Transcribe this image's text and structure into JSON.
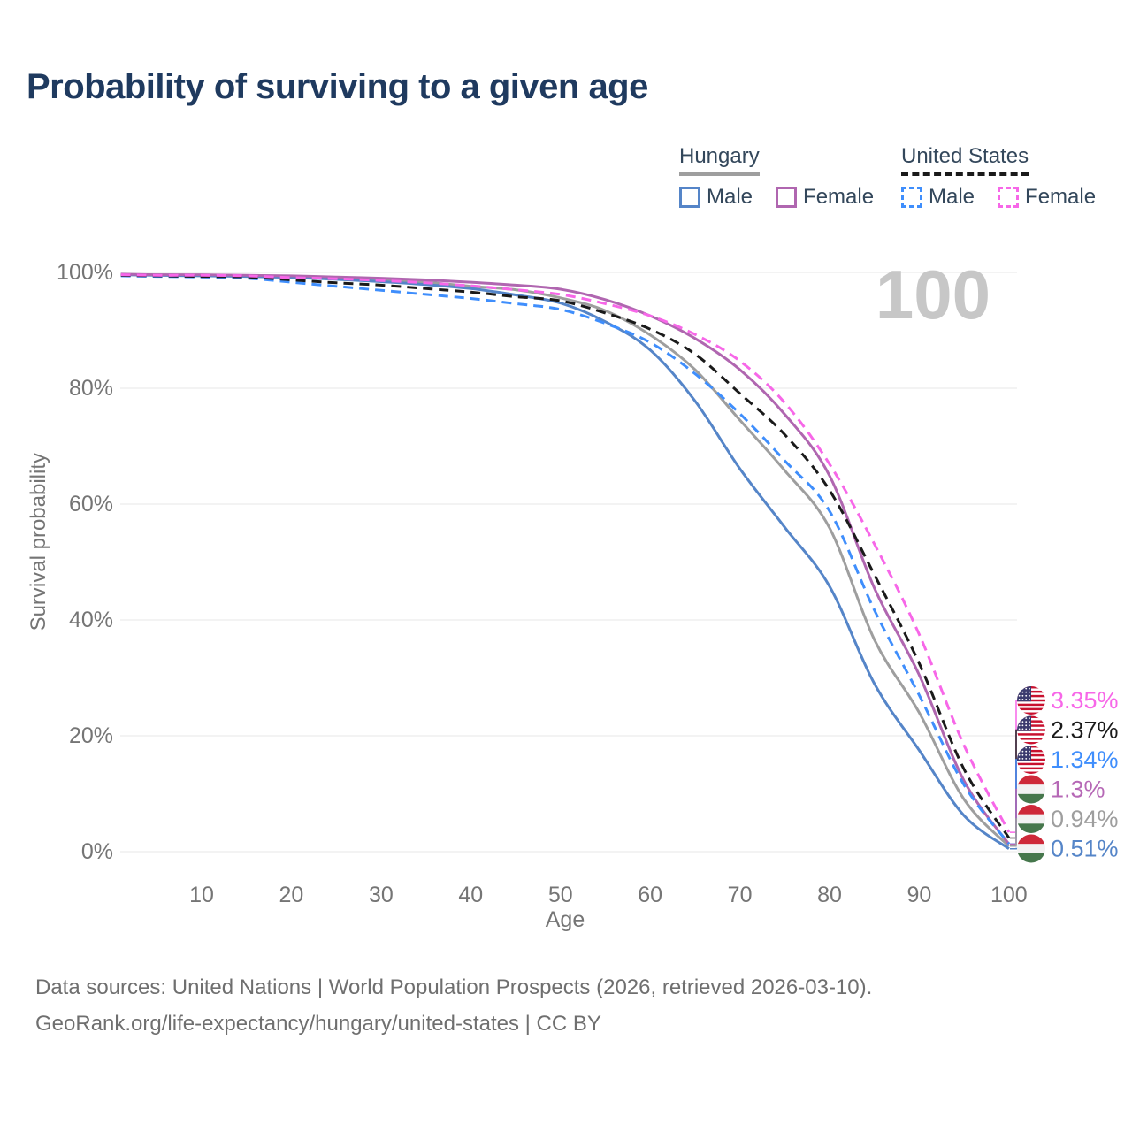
{
  "title": "Probability of surviving to a given age",
  "watermark": "100",
  "legend": {
    "groups": [
      {
        "label": "Hungary",
        "line_color": "#9e9e9e",
        "line_style": "solid",
        "items": [
          {
            "label": "Male",
            "color": "#5585c8",
            "style": "solid"
          },
          {
            "label": "Female",
            "color": "#b066b0",
            "style": "solid"
          }
        ]
      },
      {
        "label": "United States",
        "line_color": "#1a1a1a",
        "line_style": "dashed",
        "items": [
          {
            "label": "Male",
            "color": "#3f8efc",
            "style": "dashed"
          },
          {
            "label": "Female",
            "color": "#f767e8",
            "style": "dashed"
          }
        ]
      }
    ]
  },
  "chart_data": {
    "type": "line",
    "title": "Probability of surviving to a given age",
    "xlabel": "Age",
    "ylabel": "Survival probability",
    "xlim": [
      1,
      100
    ],
    "ylim": [
      0,
      100
    ],
    "grid": "horizontal-only",
    "legend_position": "top-right",
    "x_ticks": [
      10,
      20,
      30,
      40,
      50,
      60,
      70,
      80,
      90,
      100
    ],
    "y_ticks": [
      0,
      20,
      40,
      60,
      80,
      100
    ],
    "y_tick_suffix": "%",
    "x": [
      1,
      5,
      10,
      15,
      20,
      25,
      30,
      35,
      40,
      45,
      50,
      55,
      60,
      65,
      70,
      75,
      80,
      85,
      90,
      95,
      100
    ],
    "series": [
      {
        "name": "Hungary — Both sexes",
        "country": "Hungary",
        "sex": "both",
        "style": "solid",
        "color": "#9e9e9e",
        "values": [
          99.6,
          99.6,
          99.5,
          99.4,
          99.2,
          99.0,
          98.7,
          98.3,
          97.6,
          97.0,
          95.6,
          93.4,
          89.2,
          83.2,
          74.5,
          65.8,
          55.9,
          36.6,
          24.0,
          9.0,
          0.94
        ],
        "end_label": "0.94%"
      },
      {
        "name": "Hungary — Male",
        "country": "Hungary",
        "sex": "male",
        "style": "solid",
        "color": "#5585c8",
        "values": [
          99.6,
          99.5,
          99.4,
          99.3,
          99.1,
          98.8,
          98.4,
          97.9,
          97.2,
          96.1,
          94.7,
          91.5,
          86.6,
          77.8,
          66.1,
          56.0,
          45.8,
          29.0,
          17.5,
          6.2,
          0.51
        ],
        "end_label": "0.51%"
      },
      {
        "name": "Hungary — Female",
        "country": "Hungary",
        "sex": "female",
        "style": "solid",
        "color": "#b066b0",
        "values": [
          99.7,
          99.6,
          99.6,
          99.5,
          99.4,
          99.2,
          99.0,
          98.7,
          98.3,
          97.8,
          97.1,
          95.3,
          92.5,
          88.6,
          83.2,
          75.5,
          64.9,
          45.5,
          30.5,
          12.2,
          1.3
        ],
        "end_label": "1.3%"
      },
      {
        "name": "United States — Male",
        "country": "United States",
        "sex": "male",
        "style": "dashed",
        "color": "#3f8efc",
        "values": [
          99.4,
          99.3,
          99.2,
          99.0,
          98.3,
          97.6,
          96.9,
          96.2,
          95.5,
          94.6,
          93.6,
          91.2,
          87.9,
          82.5,
          75.6,
          67.5,
          58.8,
          41.7,
          27.0,
          11.5,
          1.34
        ],
        "end_label": "1.34%"
      },
      {
        "name": "United States — Both sexes",
        "country": "United States",
        "sex": "both",
        "style": "dashed",
        "color": "#1a1a1a",
        "values": [
          99.5,
          99.4,
          99.3,
          99.2,
          98.7,
          98.2,
          97.8,
          97.2,
          96.6,
          95.8,
          95.1,
          93.0,
          90.2,
          85.9,
          79.1,
          72.0,
          62.4,
          47.8,
          32.5,
          14.2,
          2.37
        ],
        "end_label": "2.37%"
      },
      {
        "name": "United States — Female",
        "country": "United States",
        "sex": "female",
        "style": "dashed",
        "color": "#f767e8",
        "values": [
          99.6,
          99.5,
          99.5,
          99.4,
          99.1,
          98.9,
          98.6,
          98.2,
          97.7,
          97.0,
          96.2,
          94.6,
          92.5,
          89.3,
          84.7,
          77.5,
          66.9,
          53.1,
          37.5,
          18.3,
          3.35
        ],
        "end_label": "3.35%"
      }
    ],
    "end_labels": [
      {
        "series": "United States — Female",
        "flag": "us",
        "value": "3.35%",
        "end_value": 3.35,
        "color": "#f767e8"
      },
      {
        "series": "United States — Both sexes",
        "flag": "us",
        "value": "2.37%",
        "end_value": 2.37,
        "color": "#1a1a1a"
      },
      {
        "series": "United States — Male",
        "flag": "us",
        "value": "1.34%",
        "end_value": 1.34,
        "color": "#3f8efc"
      },
      {
        "series": "Hungary — Female",
        "flag": "hu",
        "value": "1.3%",
        "end_value": 1.3,
        "color": "#b668b6"
      },
      {
        "series": "Hungary — Both sexes",
        "flag": "hu",
        "value": "0.94%",
        "end_value": 0.94,
        "color": "#9e9e9e"
      },
      {
        "series": "Hungary — Male",
        "flag": "hu",
        "value": "0.51%",
        "end_value": 0.51,
        "color": "#5585c8"
      }
    ]
  },
  "footer": {
    "line1": "Data sources: United Nations | World Population Prospects (2026, retrieved 2026-03-10).",
    "line2": "GeoRank.org/life-expectancy/hungary/united-states | CC BY"
  }
}
